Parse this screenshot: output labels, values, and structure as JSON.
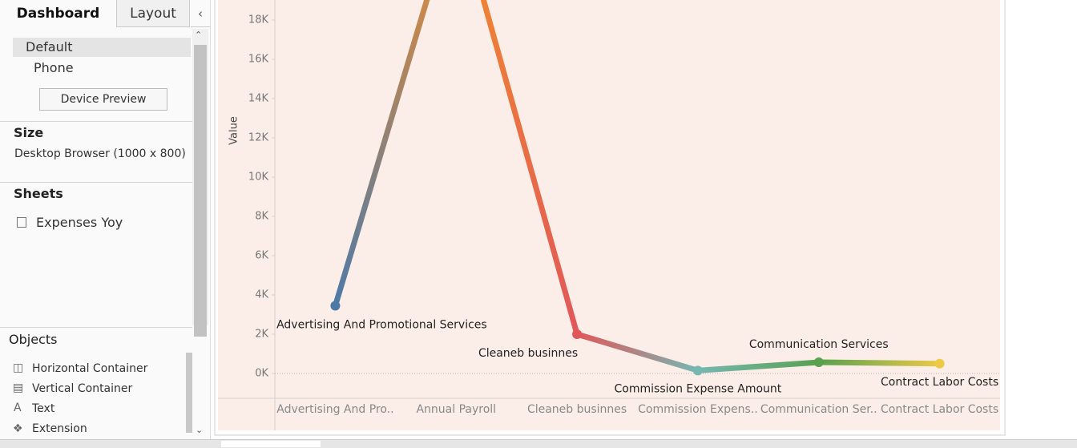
{
  "sidebar": {
    "tabs": [
      "Dashboard",
      "Layout"
    ],
    "devices": [
      "Default",
      "Phone"
    ],
    "device_preview": "Device Preview",
    "size": {
      "title": "Size",
      "value": "Desktop Browser (1000 x 800)"
    },
    "sheets": {
      "title": "Sheets",
      "items": [
        "Expenses Yoy"
      ]
    },
    "objects": {
      "title": "Objects",
      "items": [
        "Horizontal Container",
        "Vertical Container",
        "Text",
        "Extension"
      ]
    }
  },
  "chart_data": {
    "type": "line",
    "y_axis_label": "Value",
    "categories": [
      "Advertising And Pro..",
      "Annual Payroll",
      "Cleaneb businnes",
      "Commission Expens..",
      "Communication Ser..",
      "Contract Labor Costs"
    ],
    "point_labels": [
      "Advertising And Promotional Services",
      null,
      "Cleaneb businnes",
      "Commission Expense Amount",
      "Communication Services",
      "Contract Labor Costs"
    ],
    "values": [
      3450,
      24000,
      2000,
      150,
      570,
      500
    ],
    "colors": [
      "#4e79a7",
      "#f28e2b",
      "#e15759",
      "#76b7b2",
      "#59a14f",
      "#edc948"
    ],
    "ylim": [
      -1265,
      19020
    ],
    "yticks": [
      {
        "value": 0,
        "label": "0K"
      },
      {
        "value": 2000,
        "label": "2K"
      },
      {
        "value": 4000,
        "label": "4K"
      },
      {
        "value": 6000,
        "label": "6K"
      },
      {
        "value": 8000,
        "label": "8K"
      },
      {
        "value": 10000,
        "label": "10K"
      },
      {
        "value": 12000,
        "label": "12K"
      },
      {
        "value": 14000,
        "label": "14K"
      },
      {
        "value": 16000,
        "label": "16K"
      },
      {
        "value": 18000,
        "label": "18K"
      }
    ],
    "zero_line": true
  }
}
